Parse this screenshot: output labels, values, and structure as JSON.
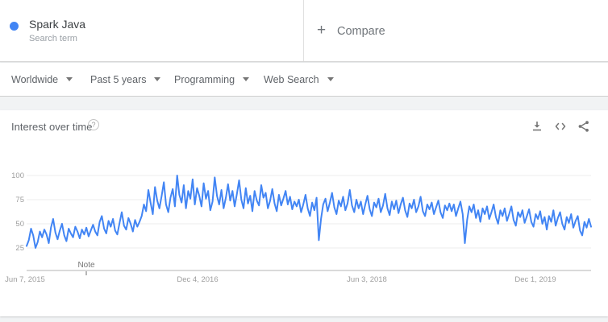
{
  "header": {
    "term": {
      "title": "Spark Java",
      "subtitle": "Search term",
      "dot_color": "#4285f4"
    },
    "compare": {
      "plus": "+",
      "label": "Compare"
    }
  },
  "filters": [
    {
      "label": "Worldwide"
    },
    {
      "label": "Past 5 years"
    },
    {
      "label": "Programming"
    },
    {
      "label": "Web Search"
    }
  ],
  "card": {
    "title": "Interest over time",
    "help_glyph": "?"
  },
  "chart_data": {
    "type": "line",
    "title": "Interest over time",
    "series_name": "Spark Java",
    "frequency": "weekly",
    "line_color": "#4285f4",
    "grid": true,
    "ylim": [
      0,
      100
    ],
    "yticks": [
      "100",
      "75",
      "50",
      "25"
    ],
    "xticks": [
      "Jun 7, 2015",
      "Dec 4, 2016",
      "Jun 3, 2018",
      "Dec 1, 2019"
    ],
    "note_label": "Note",
    "values": [
      27,
      33,
      45,
      38,
      25,
      31,
      42,
      36,
      44,
      39,
      30,
      46,
      55,
      41,
      34,
      43,
      50,
      38,
      32,
      45,
      40,
      36,
      47,
      42,
      35,
      44,
      39,
      46,
      37,
      43,
      49,
      42,
      38,
      52,
      58,
      45,
      40,
      53,
      47,
      55,
      43,
      39,
      51,
      62,
      48,
      44,
      56,
      50,
      42,
      54,
      47,
      52,
      58,
      70,
      63,
      85,
      72,
      60,
      88,
      74,
      66,
      79,
      93,
      70,
      62,
      77,
      86,
      68,
      100,
      80,
      72,
      90,
      66,
      84,
      76,
      96,
      70,
      87,
      79,
      68,
      92,
      76,
      84,
      64,
      73,
      98,
      79,
      70,
      85,
      66,
      77,
      91,
      74,
      84,
      68,
      81,
      95,
      75,
      66,
      87,
      71,
      79,
      63,
      84,
      74,
      69,
      90,
      77,
      82,
      66,
      74,
      86,
      71,
      63,
      80,
      69,
      76,
      84,
      70,
      78,
      65,
      73,
      68,
      75,
      62,
      70,
      80,
      66,
      58,
      72,
      64,
      77,
      33,
      55,
      70,
      76,
      63,
      72,
      82,
      67,
      60,
      74,
      68,
      78,
      64,
      71,
      85,
      69,
      62,
      75,
      66,
      73,
      60,
      70,
      79,
      65,
      58,
      72,
      67,
      76,
      62,
      69,
      81,
      66,
      59,
      73,
      65,
      74,
      61,
      70,
      77,
      64,
      57,
      71,
      66,
      75,
      62,
      68,
      78,
      63,
      58,
      70,
      65,
      72,
      60,
      67,
      74,
      62,
      56,
      69,
      64,
      71,
      63,
      70,
      58,
      66,
      73,
      60,
      30,
      54,
      68,
      62,
      70,
      56,
      64,
      52,
      66,
      60,
      68,
      55,
      62,
      70,
      57,
      50,
      64,
      58,
      66,
      53,
      60,
      68,
      54,
      48,
      62,
      57,
      64,
      51,
      58,
      65,
      52,
      47,
      60,
      55,
      63,
      50,
      57,
      44,
      58,
      52,
      64,
      48,
      56,
      62,
      50,
      44,
      57,
      51,
      60,
      46,
      53,
      58,
      43,
      38,
      52,
      46,
      55,
      47
    ]
  }
}
